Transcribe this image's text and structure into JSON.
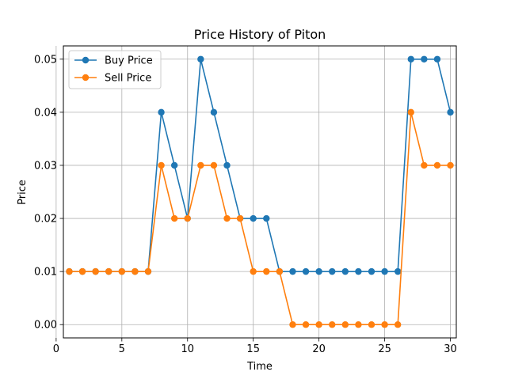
{
  "chart_data": {
    "type": "line",
    "title": "Price History of Piton",
    "xlabel": "Time",
    "ylabel": "Price",
    "xlim": [
      0.55,
      30.45
    ],
    "ylim": [
      -0.0025,
      0.0525
    ],
    "xticks": [
      0,
      5,
      10,
      15,
      20,
      25,
      30
    ],
    "xtick_labels": [
      "0",
      "5",
      "10",
      "15",
      "20",
      "25",
      "30"
    ],
    "yticks": [
      0.0,
      0.01,
      0.02,
      0.03,
      0.04,
      0.05
    ],
    "ytick_labels": [
      "0.00",
      "0.01",
      "0.02",
      "0.03",
      "0.04",
      "0.05"
    ],
    "grid": true,
    "legend_position": "top-left",
    "x": [
      1,
      2,
      3,
      4,
      5,
      6,
      7,
      8,
      9,
      10,
      11,
      12,
      13,
      14,
      15,
      16,
      17,
      18,
      19,
      20,
      21,
      22,
      23,
      24,
      25,
      26,
      27,
      28,
      29,
      30
    ],
    "series": [
      {
        "name": "Buy Price",
        "color": "#1f77b4",
        "values": [
          0.01,
          0.01,
          0.01,
          0.01,
          0.01,
          0.01,
          0.01,
          0.04,
          0.03,
          0.02,
          0.05,
          0.04,
          0.03,
          0.02,
          0.02,
          0.02,
          0.01,
          0.01,
          0.01,
          0.01,
          0.01,
          0.01,
          0.01,
          0.01,
          0.01,
          0.01,
          0.05,
          0.05,
          0.05,
          0.04
        ]
      },
      {
        "name": "Sell Price",
        "color": "#ff7f0e",
        "values": [
          0.01,
          0.01,
          0.01,
          0.01,
          0.01,
          0.01,
          0.01,
          0.03,
          0.02,
          0.02,
          0.03,
          0.03,
          0.02,
          0.02,
          0.01,
          0.01,
          0.01,
          0.0,
          0.0,
          0.0,
          0.0,
          0.0,
          0.0,
          0.0,
          0.0,
          0.0,
          0.04,
          0.03,
          0.03,
          0.03
        ]
      }
    ]
  }
}
